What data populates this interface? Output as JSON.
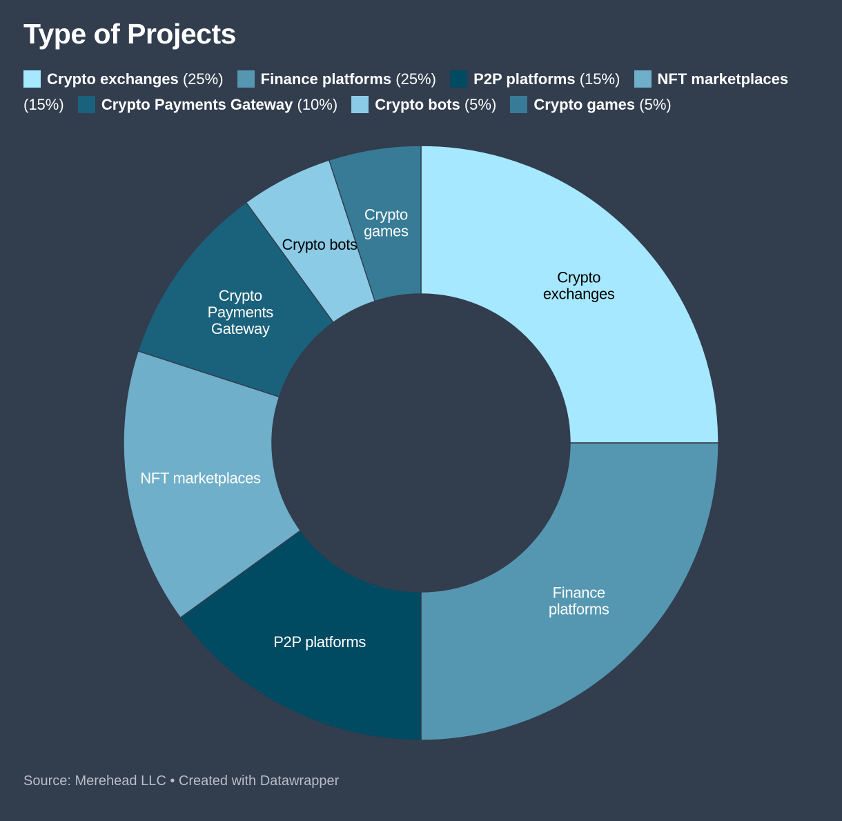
{
  "source": "Source: Merehead LLC • Created with Datawrapper",
  "chart_data": {
    "type": "pie",
    "title": "Type of Projects",
    "donut": true,
    "legend_position": "top",
    "categories": [
      "Crypto exchanges",
      "Finance platforms",
      "P2P platforms",
      "NFT marketplaces",
      "Crypto Payments Gateway",
      "Crypto bots",
      "Crypto games"
    ],
    "values": [
      25,
      25,
      15,
      15,
      10,
      5,
      5
    ],
    "legend_values": [
      "(25%)",
      "(25%)",
      "(15%)",
      "(15%)",
      "(10%)",
      "(5%)",
      "(5%)"
    ],
    "slice_labels": [
      [
        "Crypto",
        "exchanges"
      ],
      [
        "Finance",
        "platforms"
      ],
      [
        "P2P platforms"
      ],
      [
        "NFT marketplaces"
      ],
      [
        "Crypto",
        "Payments",
        "Gateway"
      ],
      [
        "Crypto bots"
      ],
      [
        "Crypto",
        "games"
      ]
    ],
    "colors": [
      "#a6e8ff",
      "#5597b1",
      "#004a62",
      "#6fafca",
      "#1a617b",
      "#8bcbe6",
      "#377b96"
    ],
    "label_colors": [
      "#000000",
      "#ffffff",
      "#ffffff",
      "#ffffff",
      "#ffffff",
      "#000000",
      "#ffffff"
    ]
  }
}
